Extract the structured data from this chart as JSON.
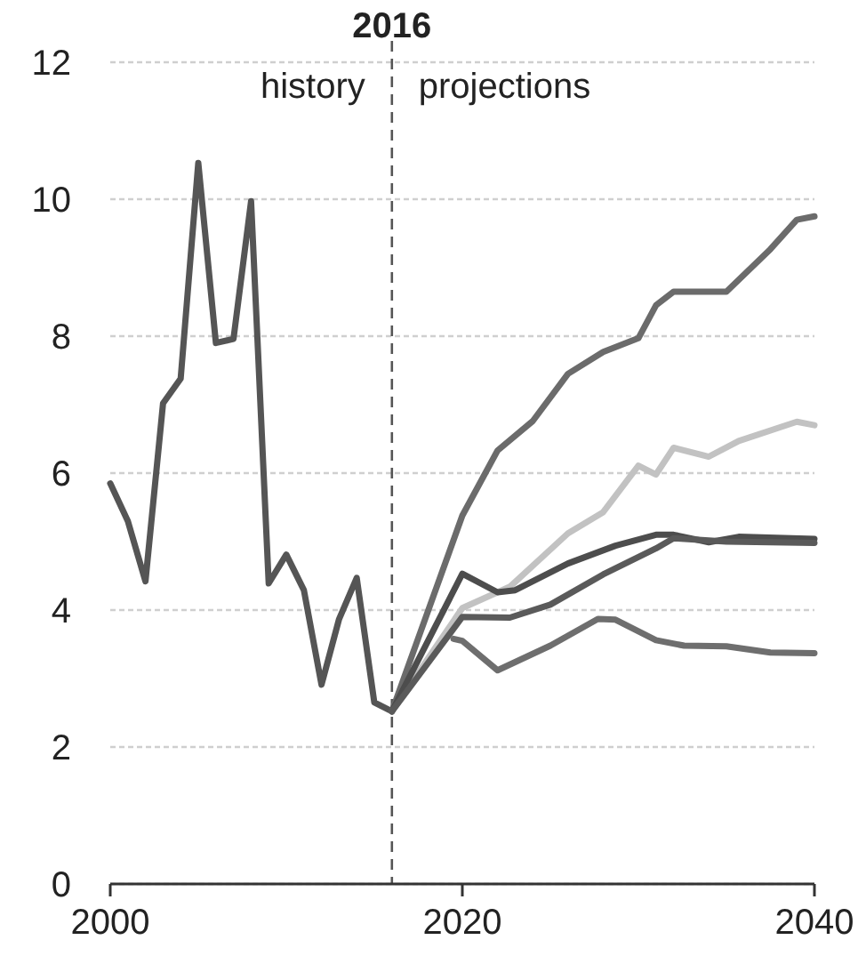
{
  "chart_data": {
    "type": "line",
    "xlim": [
      2000,
      2040
    ],
    "xticks": [
      2000,
      2020,
      2040
    ],
    "ylim": [
      0,
      12
    ],
    "yticks": [
      0,
      2,
      4,
      6,
      8,
      10,
      12
    ],
    "grid": "y",
    "line_style": "solid",
    "ref_lines": [
      {
        "axis": "x",
        "value": 2016,
        "label": "2016",
        "color": "#555555",
        "line_style": "dashed"
      }
    ],
    "annotations": [
      "history",
      "projections"
    ],
    "series": [
      {
        "color": "#555555",
        "x": [
          2000,
          2001,
          2002,
          2003,
          2004,
          2005,
          2006,
          2007,
          2008,
          2009,
          2010,
          2011,
          2012,
          2013,
          2014,
          2015,
          2016
        ],
        "values": [
          5.85,
          5.3,
          4.42,
          7.02,
          7.38,
          10.53,
          7.9,
          7.96,
          9.97,
          4.39,
          4.81,
          4.29,
          2.91,
          3.87,
          4.47,
          2.65,
          2.52
        ]
      },
      {
        "color": "#6b6b6b",
        "x": [
          2016,
          2020,
          2022,
          2024,
          2026,
          2028,
          2030,
          2031,
          2032,
          2035,
          2037.5,
          2039,
          2040
        ],
        "values": [
          2.52,
          5.38,
          6.33,
          6.76,
          7.45,
          7.77,
          7.97,
          8.45,
          8.65,
          8.65,
          9.27,
          9.7,
          9.75
        ]
      },
      {
        "color": "#c2c2c2",
        "x": [
          2016,
          2020,
          2022.7,
          2026,
          2028,
          2030,
          2031,
          2032,
          2034,
          2035.7,
          2039,
          2040
        ],
        "values": [
          2.52,
          4.03,
          4.34,
          5.12,
          5.43,
          6.11,
          5.98,
          6.37,
          6.24,
          6.47,
          6.75,
          6.7
        ]
      },
      {
        "color": "#4d4d4d",
        "x": [
          2016,
          2020,
          2022,
          2023,
          2026,
          2028.7,
          2031,
          2032,
          2034,
          2035.7,
          2040
        ],
        "values": [
          2.52,
          4.53,
          4.26,
          4.29,
          4.68,
          4.94,
          5.1,
          5.1,
          4.99,
          5.07,
          5.04
        ]
      },
      {
        "color": "#5a5a5a",
        "x": [
          2016,
          2020,
          2022.7,
          2025,
          2028,
          2031,
          2032,
          2035,
          2040
        ],
        "values": [
          2.52,
          3.9,
          3.89,
          4.08,
          4.52,
          4.9,
          5.05,
          5.0,
          4.98
        ]
      },
      {
        "color": "#6e6e6e",
        "x": [
          2019.5,
          2020,
          2022,
          2025,
          2027.7,
          2028.7,
          2031,
          2032.6,
          2035,
          2037.5,
          2040
        ],
        "values": [
          3.58,
          3.55,
          3.12,
          3.48,
          3.87,
          3.86,
          3.56,
          3.48,
          3.47,
          3.38,
          3.37
        ]
      }
    ]
  }
}
